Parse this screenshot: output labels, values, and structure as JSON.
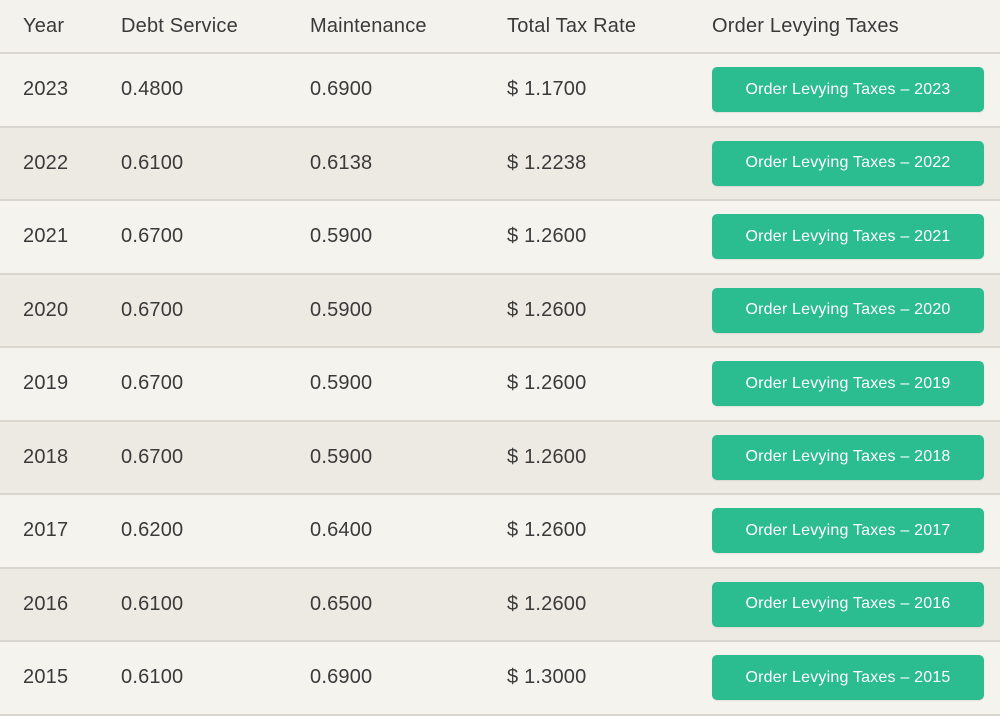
{
  "colors": {
    "button_green": "#2bbc90",
    "button_text": "#ffffff",
    "row_light": "#f5f3ee",
    "row_dark": "#edeae3",
    "divider": "#d9d6d0",
    "text": "#3a3a3a"
  },
  "table": {
    "columns": {
      "year": "Year",
      "debt_service": "Debt Service",
      "maintenance": "Maintenance",
      "total_tax_rate": "Total Tax Rate",
      "order_levying_taxes": "Order Levying Taxes"
    },
    "rows": [
      {
        "year": "2023",
        "debt_service": "0.4800",
        "maintenance": "0.6900",
        "total_tax_rate": "$ 1.1700",
        "button_label": "Order Levying Taxes – 2023"
      },
      {
        "year": "2022",
        "debt_service": "0.6100",
        "maintenance": "0.6138",
        "total_tax_rate": "$ 1.2238",
        "button_label": "Order Levying Taxes – 2022"
      },
      {
        "year": "2021",
        "debt_service": "0.6700",
        "maintenance": "0.5900",
        "total_tax_rate": "$ 1.2600",
        "button_label": "Order Levying Taxes – 2021"
      },
      {
        "year": "2020",
        "debt_service": "0.6700",
        "maintenance": "0.5900",
        "total_tax_rate": "$ 1.2600",
        "button_label": "Order Levying Taxes – 2020"
      },
      {
        "year": "2019",
        "debt_service": "0.6700",
        "maintenance": "0.5900",
        "total_tax_rate": "$ 1.2600",
        "button_label": "Order Levying Taxes – 2019"
      },
      {
        "year": "2018",
        "debt_service": "0.6700",
        "maintenance": "0.5900",
        "total_tax_rate": "$ 1.2600",
        "button_label": "Order Levying Taxes – 2018"
      },
      {
        "year": "2017",
        "debt_service": "0.6200",
        "maintenance": "0.6400",
        "total_tax_rate": "$ 1.2600",
        "button_label": "Order Levying Taxes – 2017"
      },
      {
        "year": "2016",
        "debt_service": "0.6100",
        "maintenance": "0.6500",
        "total_tax_rate": "$ 1.2600",
        "button_label": "Order Levying Taxes – 2016"
      },
      {
        "year": "2015",
        "debt_service": "0.6100",
        "maintenance": "0.6900",
        "total_tax_rate": "$ 1.3000",
        "button_label": "Order Levying Taxes – 2015"
      }
    ]
  }
}
